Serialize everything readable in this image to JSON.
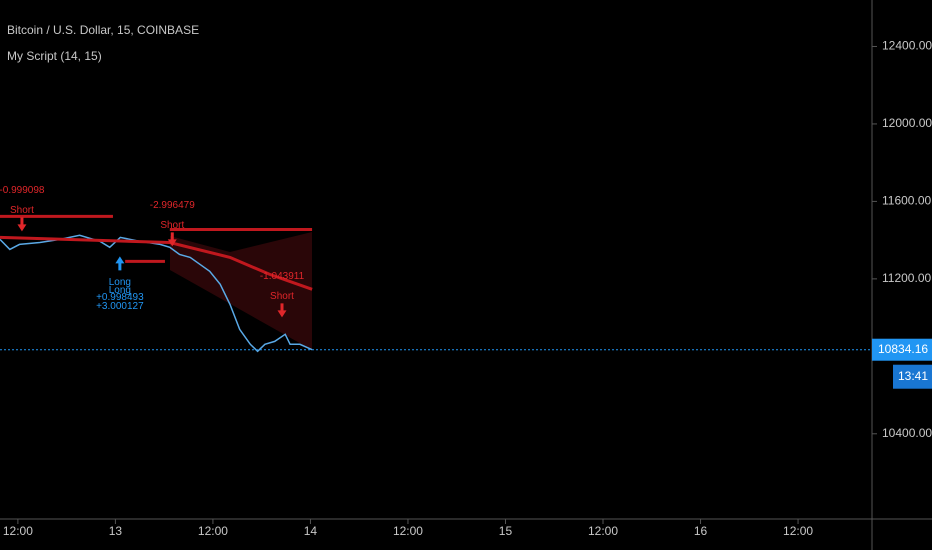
{
  "chart_data": {
    "type": "line",
    "title": "Bitcoin / U.S. Dollar, 15, COINBASE",
    "subtitle": "My Script (14, 15)",
    "xlim": [
      9.8,
      117.1
    ],
    "ylim": [
      9960,
      12640
    ],
    "xticks": [
      {
        "value": 12,
        "label": "12:00"
      },
      {
        "value": 24,
        "label": "13"
      },
      {
        "value": 36,
        "label": "12:00"
      },
      {
        "value": 48,
        "label": "14"
      },
      {
        "value": 60,
        "label": "12:00"
      },
      {
        "value": 72,
        "label": "15"
      },
      {
        "value": 84,
        "label": "12:00"
      },
      {
        "value": 96,
        "label": "16"
      },
      {
        "value": 108,
        "label": "12:00"
      }
    ],
    "yticks": [
      {
        "value": 10400,
        "label": "10400.00"
      },
      {
        "value": 11200,
        "label": "11200.00"
      },
      {
        "value": 11600,
        "label": "11600.00"
      },
      {
        "value": 12000,
        "label": "12000.00"
      },
      {
        "value": 12400,
        "label": "12400.00"
      }
    ],
    "series": [
      {
        "color": "#5aa9e6",
        "x": [
          9.8,
          11.0,
          12.2,
          14.7,
          17.2,
          19.6,
          22.1,
          23.3,
          24.6,
          27.0,
          29.5,
          30.7,
          31.9,
          33.2,
          34.4,
          35.6,
          36.9,
          38.1,
          39.3,
          40.6,
          41.5,
          42.4,
          43.6,
          44.9,
          45.5,
          46.7,
          48.2
        ],
        "values": [
          11404,
          11352,
          11378,
          11388,
          11404,
          11425,
          11394,
          11363,
          11414,
          11394,
          11378,
          11363,
          11326,
          11311,
          11275,
          11239,
          11172,
          11068,
          10939,
          10862,
          10826,
          10862,
          10877,
          10914,
          10862,
          10862,
          10834.16
        ]
      },
      {
        "color": "#c0181e",
        "x": [
          9.8,
          30.7,
          38.1,
          43.0,
          48.2
        ],
        "values": [
          11414,
          11388,
          11311,
          11223,
          11146
        ]
      }
    ],
    "levels": [
      {
        "x": [
          9.8,
          23.7
        ],
        "value": 11523,
        "color": "#c0181e"
      },
      {
        "x": [
          25.2,
          30.1
        ],
        "value": 11290,
        "color": "#c0181e"
      },
      {
        "x": [
          30.7,
          48.2
        ],
        "value": 11455,
        "color": "#c0181e"
      }
    ],
    "signals": [
      {
        "x": 12.5,
        "value": 11445,
        "side": "Short",
        "label": "-0.999098",
        "color": "#e0262a"
      },
      {
        "x": 31.0,
        "value": 11368,
        "side": "Short",
        "label": "-2.996479",
        "color": "#e0262a"
      },
      {
        "x": 44.5,
        "value": 11001,
        "side": "Short",
        "label": "-1.043911",
        "color": "#e0262a"
      },
      {
        "x": 24.55,
        "value": 11316,
        "side": "Long",
        "label": "+0.998493",
        "color": "#2196f3"
      },
      {
        "x": 24.55,
        "value": 11316,
        "side": "Long",
        "label": "+3.000127",
        "color": "#2196f3"
      }
    ],
    "countdown": "13:41"
  }
}
